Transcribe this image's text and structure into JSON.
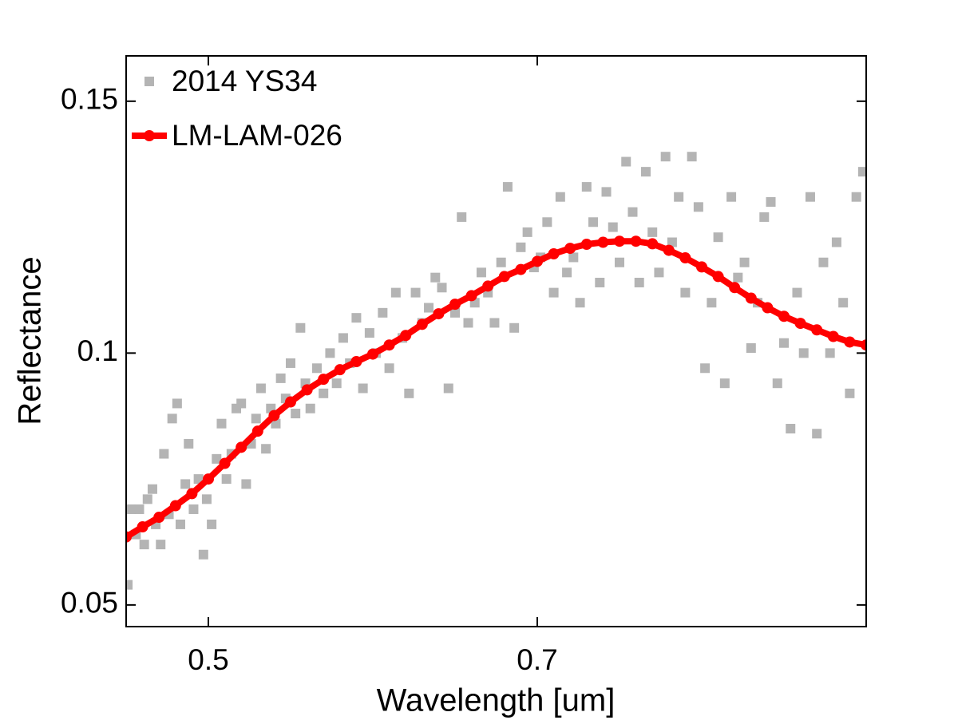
{
  "chart_data": {
    "type": "scatter",
    "xlabel": "Wavelength [um]",
    "ylabel": "Reflectance",
    "xlim": [
      0.45,
      0.9
    ],
    "ylim": [
      0.0457,
      0.159
    ],
    "xticks": [
      0.5,
      0.7
    ],
    "yticks": [
      0.05,
      0.1,
      0.15
    ],
    "grid": false,
    "legend": "upper left",
    "series": [
      {
        "name": "2014 YS34",
        "type": "scatter",
        "color": "#b4b4b4",
        "x": [
          0.451,
          0.453,
          0.456,
          0.458,
          0.461,
          0.463,
          0.466,
          0.468,
          0.471,
          0.473,
          0.476,
          0.478,
          0.481,
          0.483,
          0.486,
          0.488,
          0.491,
          0.494,
          0.497,
          0.499,
          0.502,
          0.505,
          0.508,
          0.511,
          0.514,
          0.517,
          0.52,
          0.523,
          0.526,
          0.529,
          0.532,
          0.535,
          0.538,
          0.541,
          0.544,
          0.547,
          0.55,
          0.553,
          0.556,
          0.559,
          0.562,
          0.566,
          0.57,
          0.574,
          0.578,
          0.582,
          0.586,
          0.59,
          0.594,
          0.598,
          0.602,
          0.606,
          0.61,
          0.614,
          0.618,
          0.622,
          0.626,
          0.63,
          0.634,
          0.638,
          0.642,
          0.646,
          0.65,
          0.654,
          0.658,
          0.662,
          0.666,
          0.67,
          0.674,
          0.678,
          0.682,
          0.686,
          0.69,
          0.694,
          0.698,
          0.702,
          0.706,
          0.71,
          0.714,
          0.718,
          0.722,
          0.726,
          0.73,
          0.734,
          0.738,
          0.742,
          0.746,
          0.75,
          0.754,
          0.758,
          0.762,
          0.766,
          0.77,
          0.774,
          0.778,
          0.782,
          0.786,
          0.79,
          0.794,
          0.798,
          0.802,
          0.806,
          0.81,
          0.814,
          0.818,
          0.822,
          0.826,
          0.83,
          0.834,
          0.838,
          0.842,
          0.846,
          0.85,
          0.854,
          0.858,
          0.862,
          0.866,
          0.87,
          0.874,
          0.878,
          0.882,
          0.886,
          0.89,
          0.894,
          0.898
        ],
        "values": [
          0.054,
          0.069,
          0.064,
          0.069,
          0.062,
          0.071,
          0.073,
          0.066,
          0.062,
          0.08,
          0.068,
          0.087,
          0.09,
          0.066,
          0.074,
          0.082,
          0.069,
          0.075,
          0.06,
          0.071,
          0.066,
          0.079,
          0.086,
          0.075,
          0.08,
          0.089,
          0.09,
          0.074,
          0.082,
          0.087,
          0.093,
          0.081,
          0.089,
          0.086,
          0.095,
          0.091,
          0.098,
          0.088,
          0.105,
          0.094,
          0.089,
          0.097,
          0.092,
          0.1,
          0.094,
          0.103,
          0.098,
          0.107,
          0.093,
          0.104,
          0.1,
          0.108,
          0.097,
          0.112,
          0.103,
          0.092,
          0.112,
          0.106,
          0.109,
          0.115,
          0.113,
          0.093,
          0.108,
          0.127,
          0.106,
          0.11,
          0.116,
          0.112,
          0.106,
          0.118,
          0.133,
          0.105,
          0.121,
          0.124,
          0.117,
          0.119,
          0.126,
          0.112,
          0.131,
          0.116,
          0.119,
          0.11,
          0.133,
          0.126,
          0.114,
          0.132,
          0.125,
          0.118,
          0.138,
          0.128,
          0.114,
          0.136,
          0.124,
          0.116,
          0.139,
          0.122,
          0.131,
          0.112,
          0.139,
          0.129,
          0.097,
          0.11,
          0.123,
          0.094,
          0.131,
          0.115,
          0.118,
          0.101,
          0.11,
          0.127,
          0.13,
          0.094,
          0.102,
          0.085,
          0.112,
          0.1,
          0.131,
          0.084,
          0.118,
          0.1,
          0.122,
          0.11,
          0.092,
          0.131,
          0.136
        ]
      },
      {
        "name": "LM-LAM-026",
        "type": "line",
        "color": "#ff0000",
        "x": [
          0.45,
          0.46,
          0.47,
          0.48,
          0.49,
          0.5,
          0.51,
          0.52,
          0.53,
          0.54,
          0.55,
          0.56,
          0.57,
          0.58,
          0.59,
          0.6,
          0.61,
          0.62,
          0.63,
          0.64,
          0.65,
          0.66,
          0.67,
          0.68,
          0.69,
          0.7,
          0.71,
          0.72,
          0.73,
          0.74,
          0.75,
          0.76,
          0.77,
          0.78,
          0.79,
          0.8,
          0.81,
          0.82,
          0.83,
          0.84,
          0.85,
          0.86,
          0.87,
          0.88,
          0.89,
          0.9
        ],
        "values": [
          0.0635,
          0.0655,
          0.0674,
          0.0697,
          0.0721,
          0.075,
          0.0781,
          0.0813,
          0.0845,
          0.0876,
          0.0903,
          0.0927,
          0.0948,
          0.0967,
          0.0983,
          0.0998,
          0.1016,
          0.1035,
          0.1057,
          0.1078,
          0.1097,
          0.1114,
          0.1133,
          0.1152,
          0.1166,
          0.1182,
          0.1197,
          0.1208,
          0.1216,
          0.122,
          0.1222,
          0.1222,
          0.1217,
          0.1204,
          0.1189,
          0.1171,
          0.1152,
          0.113,
          0.1109,
          0.109,
          0.1073,
          0.1059,
          0.1046,
          0.1033,
          0.1022,
          0.1016
        ]
      }
    ]
  }
}
